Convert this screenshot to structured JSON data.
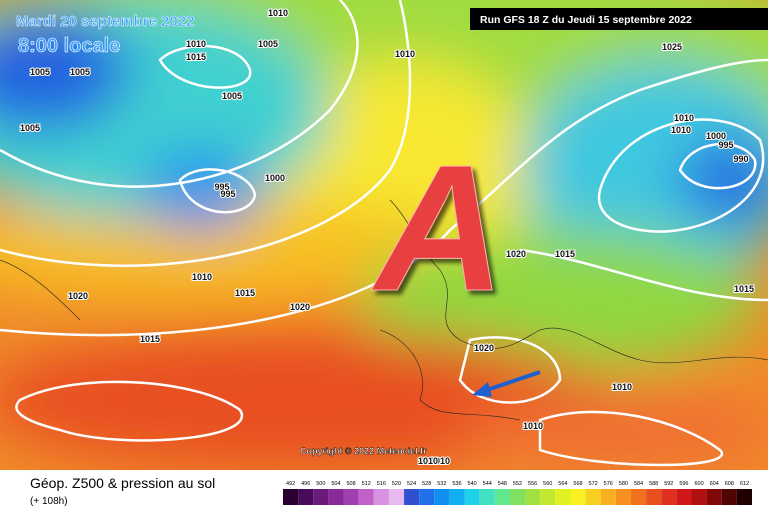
{
  "header": {
    "date": "Mardi 20 septembre 2022",
    "time": "8:00 locale",
    "run": "Run GFS 18 Z du Jeudi 15 septembre 2022"
  },
  "map": {
    "high_label": "A",
    "copyright": "Copyright © 2022 Meteociel.fr",
    "isobar_labels": [
      "1010",
      "1010",
      "1015",
      "1005",
      "1005",
      "1005",
      "1005",
      "1005",
      "1010",
      "1025",
      "1000",
      "995",
      "995",
      "1010",
      "1015",
      "1020",
      "1020",
      "1015",
      "1020",
      "1015",
      "1020",
      "1010",
      "1010",
      "1000",
      "995",
      "990",
      "1010",
      "1010",
      "1015",
      "1010",
      "1010"
    ]
  },
  "footer": {
    "title": "Géop. Z500 & pression au sol",
    "subtitle": "(+ 108h)"
  },
  "legend": {
    "values": [
      492,
      496,
      500,
      504,
      508,
      512,
      516,
      520,
      524,
      528,
      532,
      536,
      540,
      544,
      548,
      552,
      556,
      560,
      564,
      568,
      572,
      576,
      580,
      584,
      588,
      592,
      596,
      600,
      604,
      608,
      612
    ],
    "colors": [
      "#2a0030",
      "#4a0a5a",
      "#6a1a7a",
      "#8a2a9a",
      "#a040b0",
      "#c060c8",
      "#d890e0",
      "#e8b8f0",
      "#3050d0",
      "#2070e8",
      "#1090f0",
      "#10b0f0",
      "#20d0e8",
      "#40e0c0",
      "#60e890",
      "#80e060",
      "#a0e040",
      "#c0e830",
      "#e0f020",
      "#f8f020",
      "#f8d020",
      "#f8b020",
      "#f89020",
      "#f07020",
      "#e85020",
      "#e03020",
      "#d01818",
      "#b01010",
      "#800808",
      "#500404",
      "#200000"
    ]
  }
}
